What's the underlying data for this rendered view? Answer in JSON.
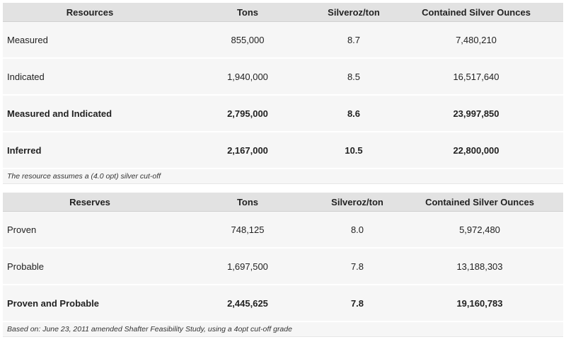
{
  "resources": {
    "headers": [
      "Resources",
      "Tons",
      "Silveroz/ton",
      "Contained Silver Ounces"
    ],
    "rows": [
      {
        "name": "Measured",
        "tons": "855,000",
        "grade": "8.7",
        "ounces": "7,480,210"
      },
      {
        "name": "Indicated",
        "tons": "1,940,000",
        "grade": "8.5",
        "ounces": "16,517,640"
      },
      {
        "name": "Measured and Indicated",
        "tons": "2,795,000",
        "grade": "8.6",
        "ounces": "23,997,850"
      },
      {
        "name": "Inferred",
        "tons": "2,167,000",
        "grade": "10.5",
        "ounces": "22,800,000"
      }
    ],
    "note": "The resource assumes a (4.0 opt) silver cut-off"
  },
  "reserves": {
    "headers": [
      "Reserves",
      "Tons",
      "Silveroz/ton",
      "Contained Silver Ounces"
    ],
    "rows": [
      {
        "name": "Proven",
        "tons": "748,125",
        "grade": "8.0",
        "ounces": "5,972,480"
      },
      {
        "name": "Probable",
        "tons": "1,697,500",
        "grade": "7.8",
        "ounces": "13,188,303"
      },
      {
        "name": "Proven and Probable",
        "tons": "2,445,625",
        "grade": "7.8",
        "ounces": "19,160,783"
      }
    ],
    "note": "Based on: June 23, 2011 amended Shafter Feasibility Study, using a 4opt cut-off grade"
  }
}
